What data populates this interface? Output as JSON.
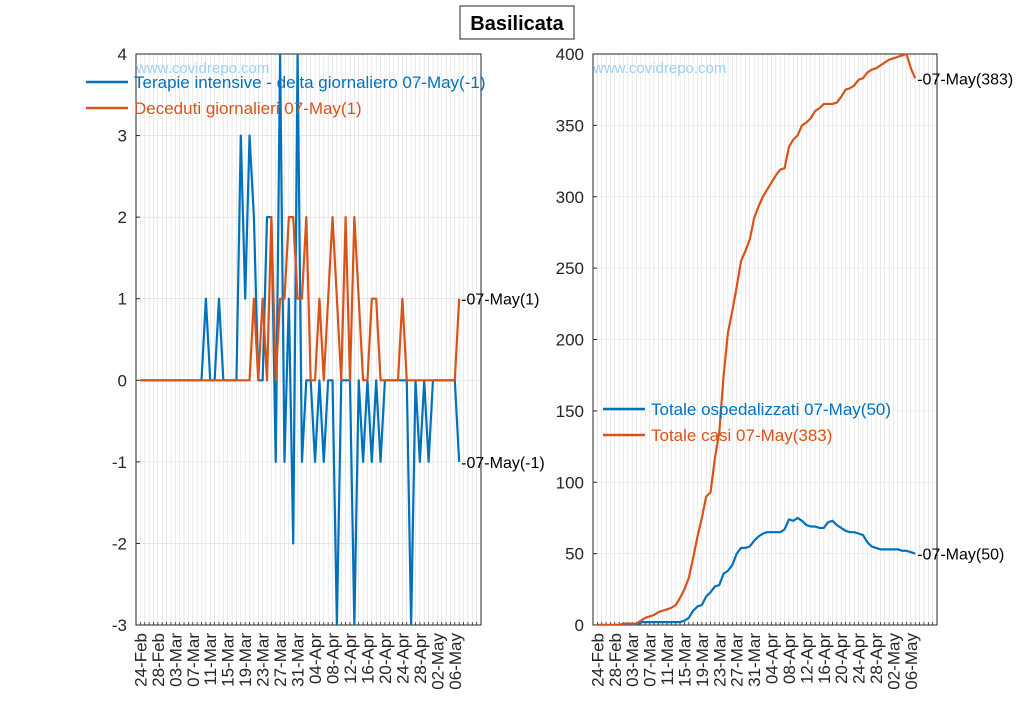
{
  "title": "Basilicata",
  "watermark": "www.covidrepo.com",
  "colors": {
    "blue": "#0072BD",
    "orange": "#D95319",
    "watermark": "#9fd0f5",
    "grid": "#dcdcdc",
    "axis": "#262626"
  },
  "chart_data": [
    {
      "type": "line",
      "panel": "left",
      "ylim": [
        -3,
        4
      ],
      "yticks": [
        -3,
        -2,
        -1,
        0,
        1,
        2,
        3,
        4
      ],
      "x_start": "24-Feb",
      "n_days": 74,
      "x_tick_labels": [
        "24-Feb",
        "28-Feb",
        "03-Mar",
        "07-Mar",
        "11-Mar",
        "15-Mar",
        "19-Mar",
        "23-Mar",
        "27-Mar",
        "31-Mar",
        "04-Apr",
        "08-Apr",
        "12-Apr",
        "16-Apr",
        "20-Apr",
        "24-Apr",
        "28-Apr",
        "02-May",
        "06-May"
      ],
      "legend_position": "top-left",
      "grid": true,
      "series": [
        {
          "name": "Terapie intensive - delta giornaliero 07-May(-1)",
          "color": "#0072BD",
          "end_label": "-07-May(-1)",
          "values": [
            0,
            0,
            0,
            0,
            0,
            0,
            0,
            0,
            0,
            0,
            0,
            0,
            0,
            0,
            0,
            1,
            0,
            0,
            1,
            0,
            0,
            0,
            0,
            3,
            1,
            3,
            2,
            0,
            0,
            2,
            2,
            -1,
            4,
            -1,
            1,
            -2,
            4,
            -1,
            0,
            0,
            -1,
            0,
            -1,
            0,
            0,
            -3,
            0,
            0,
            0,
            -3,
            0,
            -1,
            0,
            -1,
            0,
            -1,
            0,
            0,
            0,
            0,
            0,
            0,
            -3,
            0,
            -1,
            0,
            -1,
            0,
            0,
            0,
            0,
            0,
            0,
            -1
          ]
        },
        {
          "name": "Deceduti giornalieri 07-May(1)",
          "color": "#D95319",
          "end_label": "-07-May(1)",
          "values": [
            0,
            0,
            0,
            0,
            0,
            0,
            0,
            0,
            0,
            0,
            0,
            0,
            0,
            0,
            0,
            0,
            0,
            0,
            0,
            0,
            0,
            0,
            0,
            0,
            0,
            0,
            1,
            0,
            1,
            0,
            2,
            0,
            1,
            1,
            2,
            2,
            1,
            1,
            2,
            0,
            0,
            1,
            0,
            1,
            2,
            1,
            0,
            2,
            0,
            2,
            1,
            0,
            0,
            1,
            1,
            0,
            0,
            0,
            0,
            0,
            1,
            0,
            0,
            0,
            0,
            0,
            0,
            0,
            0,
            0,
            0,
            0,
            0,
            1
          ]
        }
      ]
    },
    {
      "type": "line",
      "panel": "right",
      "ylim": [
        0,
        400
      ],
      "yticks": [
        0,
        50,
        100,
        150,
        200,
        250,
        300,
        350,
        400
      ],
      "x_start": "24-Feb",
      "n_days": 74,
      "x_tick_labels": [
        "24-Feb",
        "28-Feb",
        "03-Mar",
        "07-Mar",
        "11-Mar",
        "15-Mar",
        "19-Mar",
        "23-Mar",
        "27-Mar",
        "31-Mar",
        "04-Apr",
        "08-Apr",
        "12-Apr",
        "16-Apr",
        "20-Apr",
        "24-Apr",
        "28-Apr",
        "02-May",
        "06-May"
      ],
      "legend_position": "center",
      "grid": true,
      "series": [
        {
          "name": "Totale ospedalizzati 07-May(50)",
          "color": "#0072BD",
          "end_label": "-07-May(50)",
          "values": [
            0,
            0,
            0,
            0,
            0,
            0,
            0,
            0,
            0,
            0,
            2,
            2,
            2,
            2,
            2,
            2,
            2,
            2,
            2,
            2,
            3,
            5,
            10,
            13,
            14,
            20,
            23,
            27,
            28,
            36,
            38,
            42,
            50,
            54,
            54,
            55,
            59,
            62,
            64,
            65,
            65,
            65,
            65,
            67,
            74,
            73,
            75,
            73,
            70,
            69,
            69,
            68,
            68,
            72,
            73,
            70,
            68,
            66,
            65,
            65,
            64,
            63,
            58,
            55,
            54,
            53,
            53,
            53,
            53,
            53,
            52,
            52,
            51,
            50
          ]
        },
        {
          "name": "Totale casi 07-May(383)",
          "color": "#D95319",
          "end_label": "-07-May(383)",
          "values": [
            0,
            0,
            0,
            0,
            0,
            0,
            1,
            1,
            1,
            1,
            3,
            5,
            6,
            7,
            9,
            10,
            11,
            12,
            14,
            19,
            25,
            33,
            47,
            62,
            75,
            90,
            93,
            117,
            135,
            175,
            205,
            220,
            237,
            255,
            262,
            270,
            285,
            293,
            300,
            305,
            310,
            315,
            319,
            320,
            335,
            340,
            343,
            350,
            352,
            355,
            360,
            362,
            365,
            365,
            365,
            366,
            370,
            375,
            376,
            378,
            382,
            383,
            387,
            389,
            390,
            392,
            394,
            396,
            397,
            398,
            399,
            400,
            390,
            383
          ]
        }
      ]
    }
  ]
}
